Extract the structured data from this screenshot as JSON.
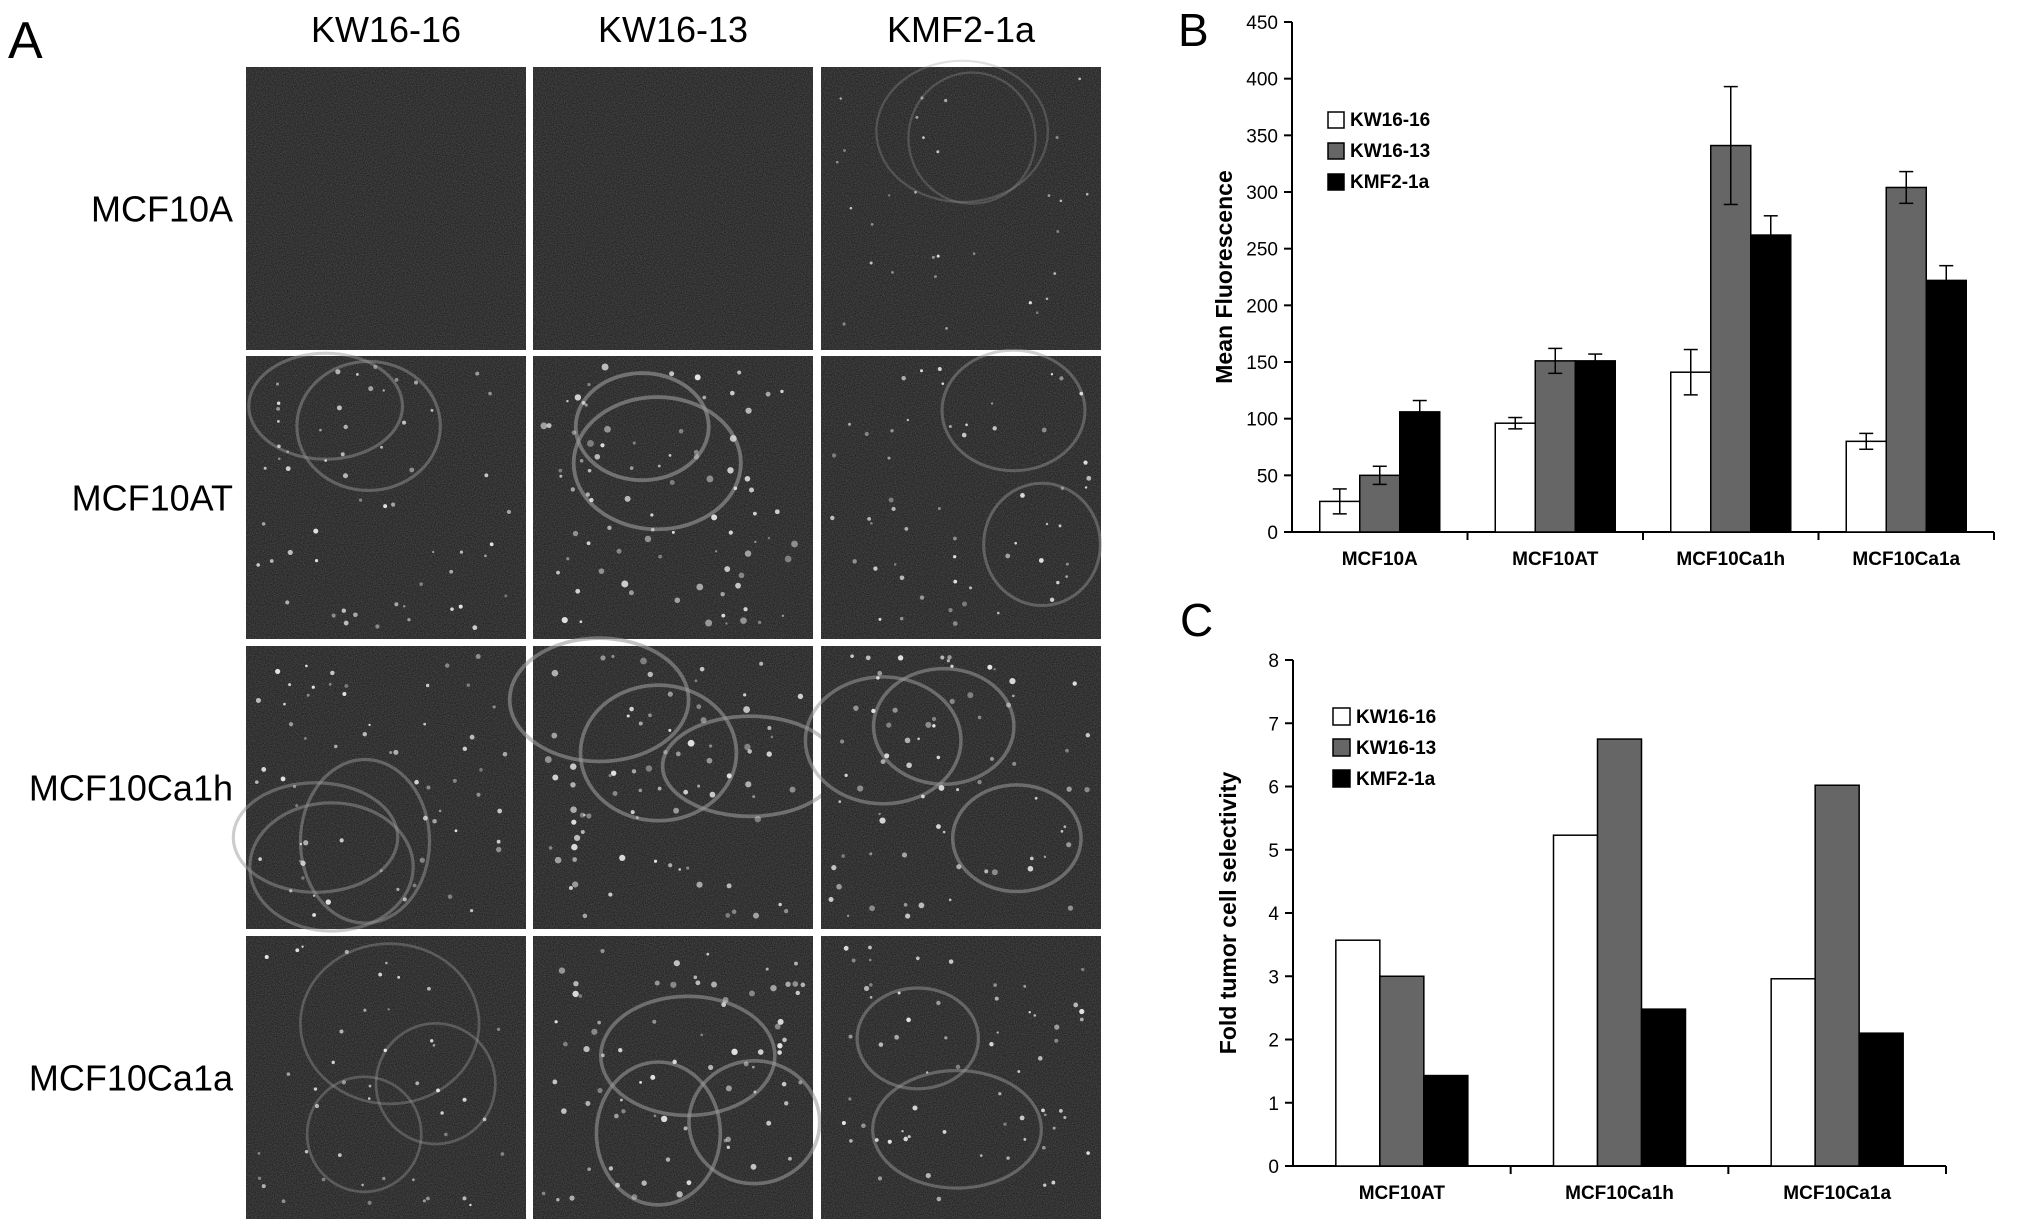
{
  "panel_labels": {
    "a": "A",
    "b": "B",
    "c": "C"
  },
  "micrographs": {
    "columns": [
      "KW16-16",
      "KW16-13",
      "KMF2-1a"
    ],
    "rows": [
      "MCF10A",
      "MCF10AT",
      "MCF10Ca1h",
      "MCF10Ca1a"
    ]
  },
  "colors": {
    "KW16-16": "#ffffff",
    "KW16-13": "#666666",
    "KMF2-1a": "#000000",
    "micrograph_bg": "#141414",
    "micrograph_signal": "#e6e6e6"
  },
  "chart_data": [
    {
      "type": "bar",
      "panel": "B",
      "ylabel": "Mean Fluorescence",
      "ylim": [
        0,
        450
      ],
      "yticks": [
        0,
        50,
        100,
        150,
        200,
        250,
        300,
        350,
        400,
        450
      ],
      "categories": [
        "MCF10A",
        "MCF10AT",
        "MCF10Ca1h",
        "MCF10Ca1a"
      ],
      "series": [
        {
          "name": "KW16-16",
          "values": [
            27,
            96,
            141,
            80
          ],
          "errors": [
            11,
            5,
            20,
            7
          ]
        },
        {
          "name": "KW16-13",
          "values": [
            50,
            151,
            341,
            304
          ],
          "errors": [
            8,
            11,
            52,
            14
          ]
        },
        {
          "name": "KMF2-1a",
          "values": [
            106,
            151,
            262,
            222
          ],
          "errors": [
            10,
            6,
            17,
            13
          ]
        }
      ],
      "legend_position": "top-left",
      "grid": false
    },
    {
      "type": "bar",
      "panel": "C",
      "ylabel": "Fold tumor cell selectivity",
      "ylim": [
        0,
        8
      ],
      "yticks": [
        0,
        1,
        2,
        3,
        4,
        5,
        6,
        7,
        8
      ],
      "categories": [
        "MCF10AT",
        "MCF10Ca1h",
        "MCF10Ca1a"
      ],
      "series": [
        {
          "name": "KW16-16",
          "values": [
            3.57,
            5.23,
            2.96
          ]
        },
        {
          "name": "KW16-13",
          "values": [
            3.0,
            6.75,
            6.02
          ]
        },
        {
          "name": "KMF2-1a",
          "values": [
            1.43,
            2.48,
            2.1
          ]
        }
      ],
      "legend_position": "top-left",
      "grid": false
    }
  ]
}
